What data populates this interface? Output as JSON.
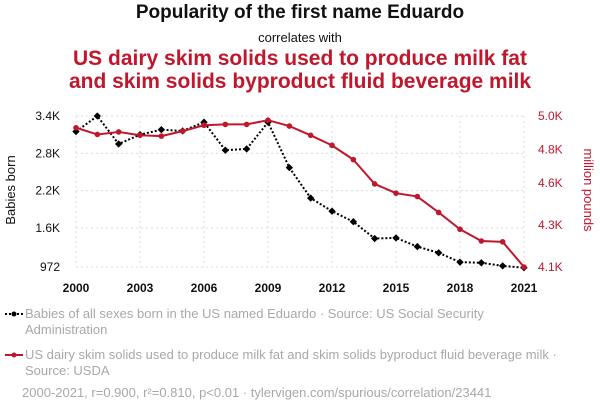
{
  "header": {
    "title": "Popularity of the first name Eduardo",
    "correlates": "correlates with",
    "title2_line1": "US dairy skim solids used to produce milk fat",
    "title2_line2": "and skim solids byproduct fluid beverage milk"
  },
  "colors": {
    "series1": "#000000",
    "series2": "#c0172d"
  },
  "chart_data": {
    "type": "line",
    "x": [
      2000,
      2001,
      2002,
      2003,
      2004,
      2005,
      2006,
      2007,
      2008,
      2009,
      2010,
      2011,
      2012,
      2013,
      2014,
      2015,
      2016,
      2017,
      2018,
      2019,
      2020,
      2021
    ],
    "x_ticks": [
      "2000",
      "2003",
      "2006",
      "2009",
      "2012",
      "2015",
      "2018",
      "2021"
    ],
    "y_left": {
      "label": "Babies born",
      "ticks": [
        "972",
        "1.6K",
        "2.2K",
        "2.8K",
        "3.4K"
      ],
      "tick_values": [
        972,
        1600,
        2200,
        2800,
        3400
      ],
      "lim": [
        972,
        3400
      ]
    },
    "y_right": {
      "label": "million pounds",
      "ticks": [
        "4.1K",
        "4.3K",
        "4.6K",
        "4.8K",
        "5.0K"
      ],
      "tick_values": [
        4100,
        4350,
        4600,
        4800,
        5000
      ],
      "lim": [
        4100,
        5000
      ]
    },
    "series": [
      {
        "name": "Babies of all sexes born in the US named Eduardo",
        "axis": "left",
        "style": "dotted",
        "values": [
          3150,
          3400,
          2950,
          3100,
          3180,
          3160,
          3300,
          2850,
          2870,
          3300,
          2570,
          2080,
          1870,
          1700,
          1430,
          1440,
          1300,
          1200,
          1050,
          1040,
          990,
          960
        ]
      },
      {
        "name": "US dairy skim solids used to produce milk fat and skim solids byproduct fluid beverage milk",
        "axis": "right",
        "style": "solid",
        "values": [
          4930,
          4890,
          4905,
          4885,
          4880,
          4910,
          4945,
          4950,
          4950,
          4975,
          4940,
          4885,
          4825,
          4740,
          4595,
          4540,
          4520,
          4425,
          4325,
          4255,
          4250,
          4100
        ]
      }
    ]
  },
  "legend": {
    "item1": "Babies of all sexes born in the US named Eduardo · Source: US Social Security Administration",
    "item2": "US dairy skim solids used to produce milk fat and skim solids byproduct fluid beverage milk · Source: USDA"
  },
  "footer": "2000-2021, r=0.900, r²=0.810, p<0.01 · tylervigen.com/spurious/correlation/23441"
}
